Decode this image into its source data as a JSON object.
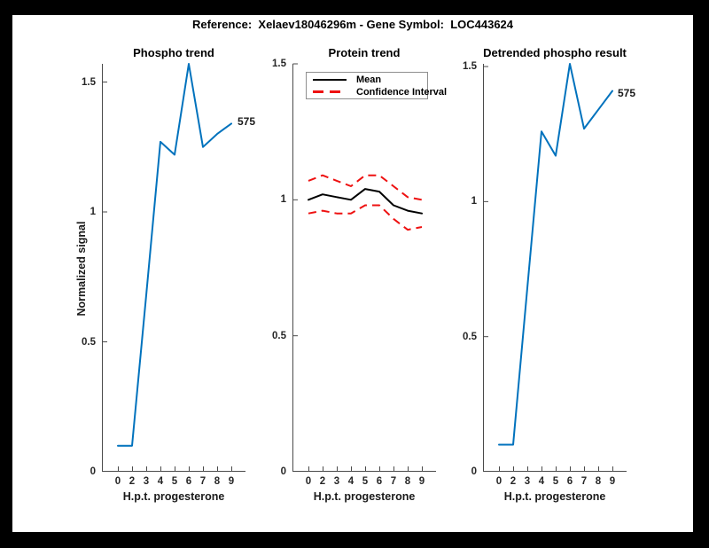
{
  "figure": {
    "title": "Reference:  Xelaev18046296m - Gene Symbol:  LOC443624",
    "background_color": "#ffffff",
    "border_color": "#000000"
  },
  "axes_shared": {
    "y_label": "Normalized signal",
    "y_tick_labels": [
      "0",
      "0.5",
      "1",
      "1.5"
    ],
    "y_tick_values": [
      0,
      0.5,
      1,
      1.5
    ],
    "x_tick_labels": [
      "0",
      "2",
      "3",
      "4",
      "5",
      "6",
      "7",
      "8",
      "9"
    ],
    "axis_color": "#4a4a4a",
    "tick_label_color": "#262626",
    "line_color_blue": "#0072BD",
    "line_color_red": "#ee1111",
    "line_color_black": "#000000"
  },
  "chart_data": [
    {
      "type": "line",
      "title": "Phospho trend",
      "xlabel": "H.p.t. progesterone",
      "ylabel": "Normalized signal",
      "x": [
        0,
        2,
        3,
        4,
        5,
        6,
        7,
        8,
        9
      ],
      "ylim": [
        0,
        1.57
      ],
      "grid": false,
      "series": [
        {
          "name": "phospho-signal",
          "color": "#0072BD",
          "dash": false,
          "values": [
            0.1,
            0.1,
            0.68,
            1.27,
            1.22,
            1.57,
            1.25,
            1.3,
            1.34
          ]
        }
      ],
      "end_label": "575"
    },
    {
      "type": "line",
      "title": "Protein trend",
      "xlabel": "H.p.t. progesterone",
      "x": [
        0,
        2,
        3,
        4,
        5,
        6,
        7,
        8,
        9
      ],
      "ylim": [
        0,
        1.5
      ],
      "grid": false,
      "legend": {
        "position": "top-left",
        "entries": [
          {
            "label": "Mean",
            "color": "#000000",
            "style": "solid"
          },
          {
            "label": "Confidence Interval",
            "color": "#ee1111",
            "style": "dashed"
          }
        ]
      },
      "series": [
        {
          "name": "mean",
          "color": "#000000",
          "dash": false,
          "values": [
            1.0,
            1.02,
            1.01,
            1.0,
            1.04,
            1.03,
            0.98,
            0.96,
            0.95
          ]
        },
        {
          "name": "confidence-upper",
          "color": "#ee1111",
          "dash": true,
          "values": [
            1.07,
            1.09,
            1.07,
            1.05,
            1.09,
            1.09,
            1.05,
            1.01,
            1.0
          ]
        },
        {
          "name": "confidence-lower",
          "color": "#ee1111",
          "dash": true,
          "values": [
            0.95,
            0.96,
            0.95,
            0.95,
            0.98,
            0.98,
            0.93,
            0.89,
            0.9
          ]
        }
      ]
    },
    {
      "type": "line",
      "title": "Detrended phospho result",
      "xlabel": "H.p.t. progesterone",
      "x": [
        0,
        2,
        3,
        4,
        5,
        6,
        7,
        8,
        9
      ],
      "ylim": [
        0,
        1.51
      ],
      "grid": false,
      "series": [
        {
          "name": "detrended-phospho-signal",
          "color": "#0072BD",
          "dash": false,
          "values": [
            0.1,
            0.1,
            0.68,
            1.26,
            1.17,
            1.51,
            1.27,
            1.34,
            1.41
          ]
        }
      ],
      "end_label": "575"
    }
  ]
}
